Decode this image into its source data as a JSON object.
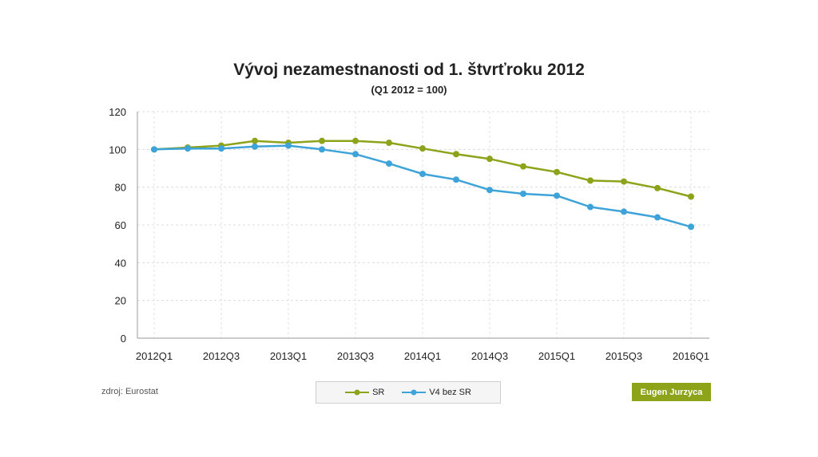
{
  "chart_data": {
    "type": "line",
    "title": "Vývoj nezamestnanosti od 1. štvrťroku 2012",
    "subtitle": "(Q1 2012 = 100)",
    "xlabel": "",
    "ylabel": "",
    "x": [
      "2012Q1",
      "2012Q2",
      "2012Q3",
      "2012Q4",
      "2013Q1",
      "2013Q2",
      "2013Q3",
      "2013Q4",
      "2014Q1",
      "2014Q2",
      "2014Q3",
      "2014Q4",
      "2015Q1",
      "2015Q2",
      "2015Q3",
      "2015Q4",
      "2016Q1"
    ],
    "x_tick_labels": [
      "2012Q1",
      "2012Q3",
      "2013Q1",
      "2013Q3",
      "2014Q1",
      "2014Q3",
      "2015Q1",
      "2015Q3",
      "2016Q1"
    ],
    "y_ticks": [
      0,
      20,
      40,
      60,
      80,
      100,
      120
    ],
    "ylim": [
      0,
      120
    ],
    "grid": true,
    "legend_position": "bottom-center",
    "series": [
      {
        "name": "SR",
        "color": "#8ca31a",
        "values": [
          100,
          101,
          102,
          104.5,
          103.5,
          104.5,
          104.5,
          103.5,
          100.5,
          97.5,
          95,
          91,
          88,
          83.5,
          83,
          79.5,
          75
        ]
      },
      {
        "name": "V4 bez SR",
        "color": "#3ea3d8",
        "values": [
          100,
          100.5,
          100.5,
          101.5,
          102,
          100,
          97.5,
          92.5,
          87,
          84,
          78.5,
          76.5,
          75.5,
          69.5,
          67,
          64,
          59
        ]
      }
    ]
  },
  "footer": {
    "source": "zdroj: Eurostat",
    "author": "Eugen Jurzyca"
  }
}
